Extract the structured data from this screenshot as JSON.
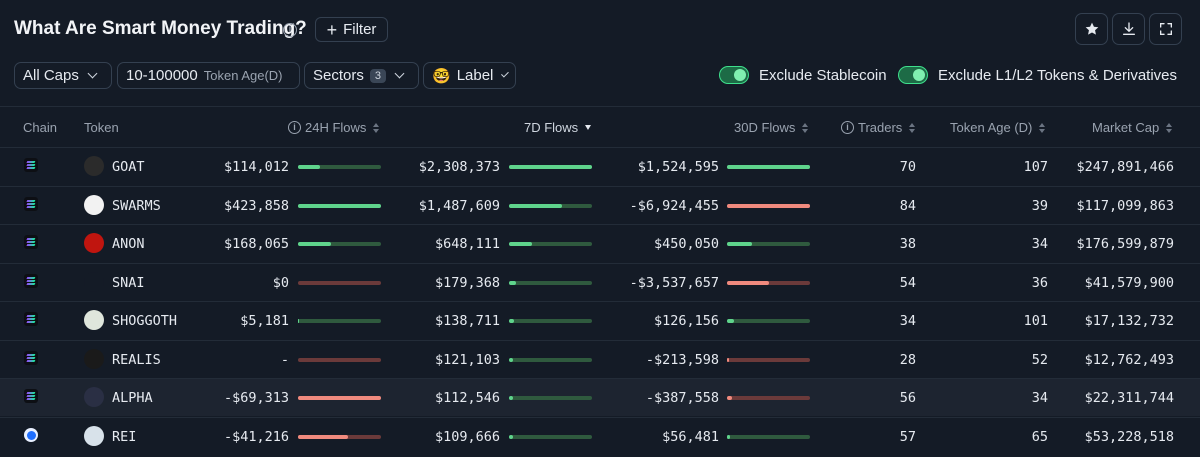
{
  "header": {
    "title": "What Are Smart Money Trading?",
    "filter_label": "Filter"
  },
  "filters": {
    "caps": "All Caps",
    "token_age_range": "10-100000",
    "token_age_label": "Token Age(D)",
    "sectors_label": "Sectors",
    "sectors_count": "3",
    "label_emoji": "🤓",
    "label_text": "Label",
    "exclude_stablecoin": "Exclude Stablecoin",
    "exclude_l1l2": "Exclude L1/L2 Tokens & Derivatives"
  },
  "table": {
    "headers": {
      "chain": "Chain",
      "token": "Token",
      "flows_24h": "24H Flows",
      "flows_7d": "7D Flows",
      "flows_30d": "30D Flows",
      "traders": "Traders",
      "token_age": "Token Age (D)",
      "market_cap": "Market Cap"
    },
    "rows": [
      {
        "chain": "solana",
        "token": "GOAT",
        "f24": "$114,012",
        "f7": "$2,308,373",
        "f30": "$1,524,595",
        "traders": "70",
        "age": "107",
        "mcap": "$247,891,466",
        "b24": {
          "sign": "pos",
          "pct": 0.27
        },
        "b7": {
          "sign": "pos",
          "pct": 1.0
        },
        "b30": {
          "sign": "pos",
          "pct": 1.0
        },
        "icon_color": "#2b2b2b"
      },
      {
        "chain": "solana",
        "token": "SWARMS",
        "f24": "$423,858",
        "f7": "$1,487,609",
        "f30": "-$6,924,455",
        "traders": "84",
        "age": "39",
        "mcap": "$117,099,863",
        "b24": {
          "sign": "pos",
          "pct": 1.0
        },
        "b7": {
          "sign": "pos",
          "pct": 0.64
        },
        "b30": {
          "sign": "neg",
          "pct": 1.0
        },
        "icon_color": "#f2f2f2"
      },
      {
        "chain": "solana",
        "token": "ANON",
        "f24": "$168,065",
        "f7": "$648,111",
        "f30": "$450,050",
        "traders": "38",
        "age": "34",
        "mcap": "$176,599,879",
        "b24": {
          "sign": "pos",
          "pct": 0.4
        },
        "b7": {
          "sign": "pos",
          "pct": 0.28
        },
        "b30": {
          "sign": "pos",
          "pct": 0.3
        },
        "icon_color": "#c0150f"
      },
      {
        "chain": "solana",
        "token": "SNAI",
        "f24": "$0",
        "f7": "$179,368",
        "f30": "-$3,537,657",
        "traders": "54",
        "age": "36",
        "mcap": "$41,579,900",
        "b24": {
          "sign": "neg",
          "pct": 0.0
        },
        "b7": {
          "sign": "pos",
          "pct": 0.08
        },
        "b30": {
          "sign": "neg",
          "pct": 0.51
        },
        "icon_color": "#141b26"
      },
      {
        "chain": "solana",
        "token": "SHOGGOTH",
        "f24": "$5,181",
        "f7": "$138,711",
        "f30": "$126,156",
        "traders": "34",
        "age": "101",
        "mcap": "$17,132,732",
        "b24": {
          "sign": "pos",
          "pct": 0.01
        },
        "b7": {
          "sign": "pos",
          "pct": 0.06
        },
        "b30": {
          "sign": "pos",
          "pct": 0.08
        },
        "icon_color": "#dfe6dc"
      },
      {
        "chain": "solana",
        "token": "REALIS",
        "f24": "-",
        "f7": "$121,103",
        "f30": "-$213,598",
        "traders": "28",
        "age": "52",
        "mcap": "$12,762,493",
        "b24": {
          "sign": "neg",
          "pct": 0.0
        },
        "b7": {
          "sign": "pos",
          "pct": 0.05
        },
        "b30": {
          "sign": "neg",
          "pct": 0.03
        },
        "icon_color": "#1a1a1a"
      },
      {
        "chain": "solana",
        "token": "ALPHA",
        "f24": "-$69,313",
        "f7": "$112,546",
        "f30": "-$387,558",
        "traders": "56",
        "age": "34",
        "mcap": "$22,311,744",
        "b24": {
          "sign": "neg",
          "pct": 1.0
        },
        "b7": {
          "sign": "pos",
          "pct": 0.05
        },
        "b30": {
          "sign": "neg",
          "pct": 0.06
        },
        "icon_color": "#2a2f44"
      },
      {
        "chain": "base",
        "token": "REI",
        "f24": "-$41,216",
        "f7": "$109,666",
        "f30": "$56,481",
        "traders": "57",
        "age": "65",
        "mcap": "$53,228,518",
        "b24": {
          "sign": "neg",
          "pct": 0.6
        },
        "b7": {
          "sign": "pos",
          "pct": 0.05
        },
        "b30": {
          "sign": "pos",
          "pct": 0.04
        },
        "icon_color": "#d8e2ea"
      }
    ]
  },
  "colors": {
    "background": "#141b26",
    "positive": "#5fd48c",
    "negative": "#f08a7e",
    "toggle_on": "#3ee08c"
  }
}
